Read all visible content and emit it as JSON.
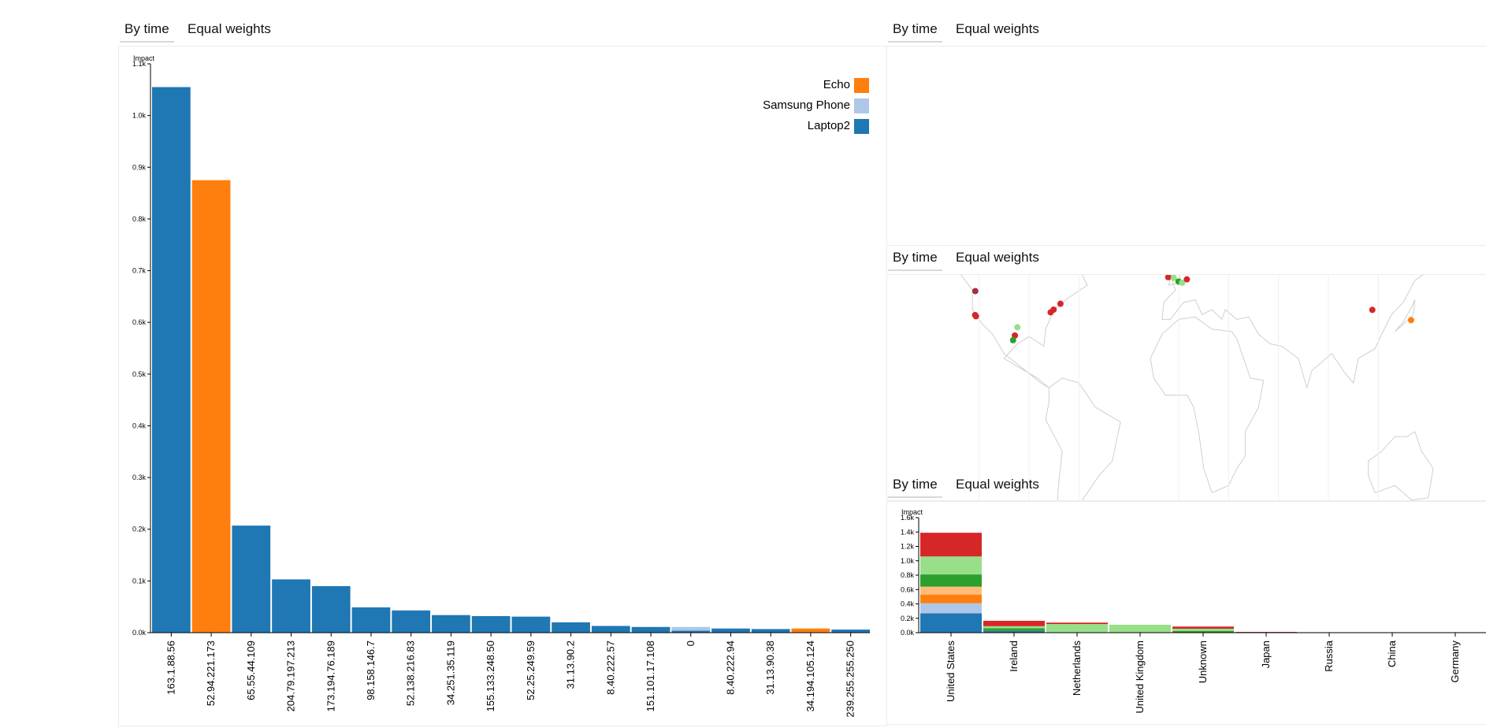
{
  "tabs": {
    "by_time": "By time",
    "equal_weights": "Equal weights"
  },
  "colors": {
    "Laptop2": "#1f77b4",
    "Samsung Phone": "#aec7e8",
    "Echo": "#ff7f0e",
    "s4": "#ffbb78",
    "s5": "#2ca02c",
    "s6": "#98df8a",
    "s7": "#d62728"
  },
  "map_points": [
    {
      "lon": -122.4,
      "lat": 37.8,
      "color": "#d62728"
    },
    {
      "lon": -121.9,
      "lat": 37.3,
      "color": "#d62728"
    },
    {
      "lon": -122.3,
      "lat": 47.6,
      "color": "#a33040"
    },
    {
      "lon": -97.0,
      "lat": 32.8,
      "color": "#98df8a"
    },
    {
      "lon": -98.5,
      "lat": 29.4,
      "color": "#d62728"
    },
    {
      "lon": -99.6,
      "lat": 27.5,
      "color": "#2ca02c"
    },
    {
      "lon": -77.0,
      "lat": 38.9,
      "color": "#d62728"
    },
    {
      "lon": -75.2,
      "lat": 40.0,
      "color": "#d62728"
    },
    {
      "lon": -71.1,
      "lat": 42.4,
      "color": "#d62728"
    },
    {
      "lon": -6.3,
      "lat": 53.3,
      "color": "#d62728"
    },
    {
      "lon": -3.0,
      "lat": 53.0,
      "color": "#98df8a"
    },
    {
      "lon": -0.1,
      "lat": 51.5,
      "color": "#2ca02c"
    },
    {
      "lon": 2.0,
      "lat": 51.0,
      "color": "#98df8a"
    },
    {
      "lon": 4.9,
      "lat": 52.4,
      "color": "#d62728"
    },
    {
      "lon": 116.4,
      "lat": 39.9,
      "color": "#d62728"
    },
    {
      "lon": 139.7,
      "lat": 35.7,
      "color": "#ff7f0e"
    }
  ],
  "chart_data": [
    {
      "type": "bar",
      "ylabel": "Impact",
      "ylim": [
        0,
        1100
      ],
      "yticks": [
        "0.0k",
        "0.1k",
        "0.2k",
        "0.3k",
        "0.4k",
        "0.5k",
        "0.6k",
        "0.7k",
        "0.8k",
        "0.9k",
        "1.0k",
        "1.1k"
      ],
      "legend": [
        "Echo",
        "Samsung Phone",
        "Laptop2"
      ],
      "legend_position": "top-right",
      "categories": [
        "163.1.88.56",
        "52.94.221.173",
        "65.55.44.109",
        "204.79.197.213",
        "173.194.76.189",
        "98.158.146.7",
        "52.138.216.83",
        "34.251.35.119",
        "155.133.248.50",
        "52.25.249.59",
        "31.13.90.2",
        "8.40.222.57",
        "151.101.17.108",
        "0",
        "8.40.222.94",
        "31.13.90.38",
        "34.194.105.124",
        "239.255.255.250"
      ],
      "series": [
        {
          "name": "Laptop2",
          "values": [
            1055,
            0,
            207,
            103,
            90,
            49,
            43,
            34,
            32,
            31,
            20,
            13,
            11,
            4,
            8,
            7,
            0,
            6
          ]
        },
        {
          "name": "Samsung Phone",
          "values": [
            0,
            0,
            0,
            0,
            0,
            0,
            0,
            0,
            0,
            0,
            0,
            0,
            0,
            7,
            0,
            0,
            0,
            0
          ]
        },
        {
          "name": "Echo",
          "values": [
            0,
            875,
            0,
            0,
            0,
            0,
            0,
            0,
            0,
            0,
            0,
            0,
            0,
            0,
            0,
            0,
            8,
            0
          ]
        }
      ]
    },
    {
      "type": "bar",
      "ylabel": "Impact",
      "ylim": [
        0,
        1600
      ],
      "yticks": [
        "0.0k",
        "0.2k",
        "0.4k",
        "0.6k",
        "0.8k",
        "1.0k",
        "1.2k",
        "1.4k",
        "1.6k"
      ],
      "categories": [
        "United States",
        "Ireland",
        "Netherlands",
        "United Kingdom",
        "Unknown",
        "Japan",
        "Russia",
        "China",
        "Germany"
      ],
      "series": [
        {
          "name": "Laptop2",
          "values": [
            270,
            25,
            0,
            0,
            0,
            0,
            0,
            0,
            0
          ]
        },
        {
          "name": "Samsung Phone",
          "values": [
            140,
            0,
            0,
            0,
            0,
            0,
            0,
            0,
            0
          ]
        },
        {
          "name": "Echo",
          "values": [
            120,
            0,
            0,
            0,
            0,
            6,
            0,
            0,
            0
          ]
        },
        {
          "name": "s4",
          "values": [
            110,
            0,
            0,
            0,
            0,
            0,
            0,
            0,
            0
          ]
        },
        {
          "name": "s5",
          "values": [
            170,
            35,
            0,
            0,
            25,
            0,
            0,
            0,
            0
          ]
        },
        {
          "name": "s6",
          "values": [
            250,
            30,
            120,
            110,
            30,
            0,
            0,
            0,
            0
          ]
        },
        {
          "name": "s7",
          "values": [
            330,
            75,
            20,
            0,
            30,
            4,
            6,
            6,
            6
          ]
        }
      ]
    }
  ]
}
